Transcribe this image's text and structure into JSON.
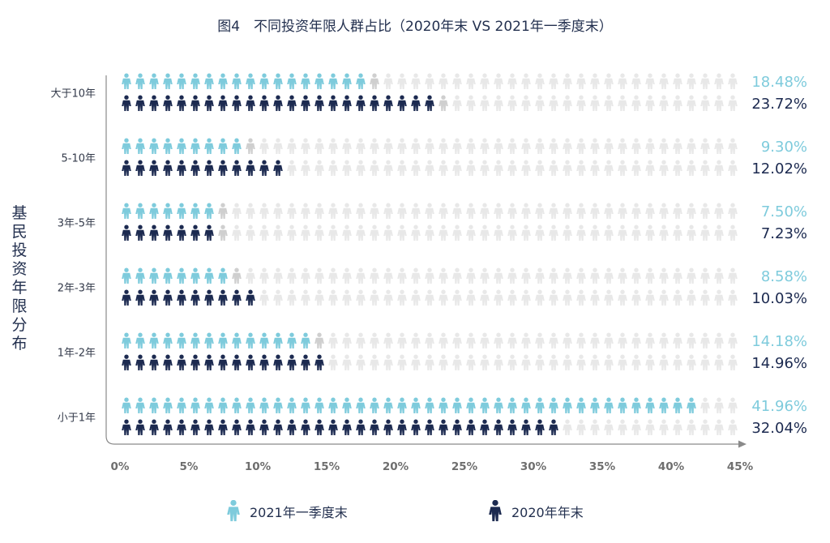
{
  "chart_data": {
    "type": "pictograph-bar",
    "title": "图4　不同投资年限人群占比（2020年末 VS 2021年一季度末）",
    "ylabel": "基民投资年限分布",
    "categories": [
      "大于10年",
      "5-10年",
      "3年-5年",
      "2年-3年",
      "1年-2年",
      "小于1年"
    ],
    "series": [
      {
        "name": "2021年一季度末",
        "color": "#7ecbdc",
        "values": [
          18.48,
          9.3,
          7.5,
          8.58,
          14.18,
          41.96
        ],
        "labels": [
          "18.48%",
          "9.30%",
          "7.50%",
          "8.58%",
          "14.18%",
          "41.96%"
        ]
      },
      {
        "name": "2020年年末",
        "color": "#1c2a50",
        "values": [
          23.72,
          12.02,
          7.23,
          10.03,
          14.96,
          32.04
        ],
        "labels": [
          "23.72%",
          "12.02%",
          "7.23%",
          "10.03%",
          "14.96%",
          "32.04%"
        ]
      }
    ],
    "xlim": [
      0,
      45
    ],
    "xticks": [
      "0%",
      "5%",
      "10%",
      "15%",
      "20%",
      "25%",
      "30%",
      "35%",
      "40%",
      "45%"
    ],
    "icon_unit": 1,
    "empty_color": "#e8e8e8"
  }
}
